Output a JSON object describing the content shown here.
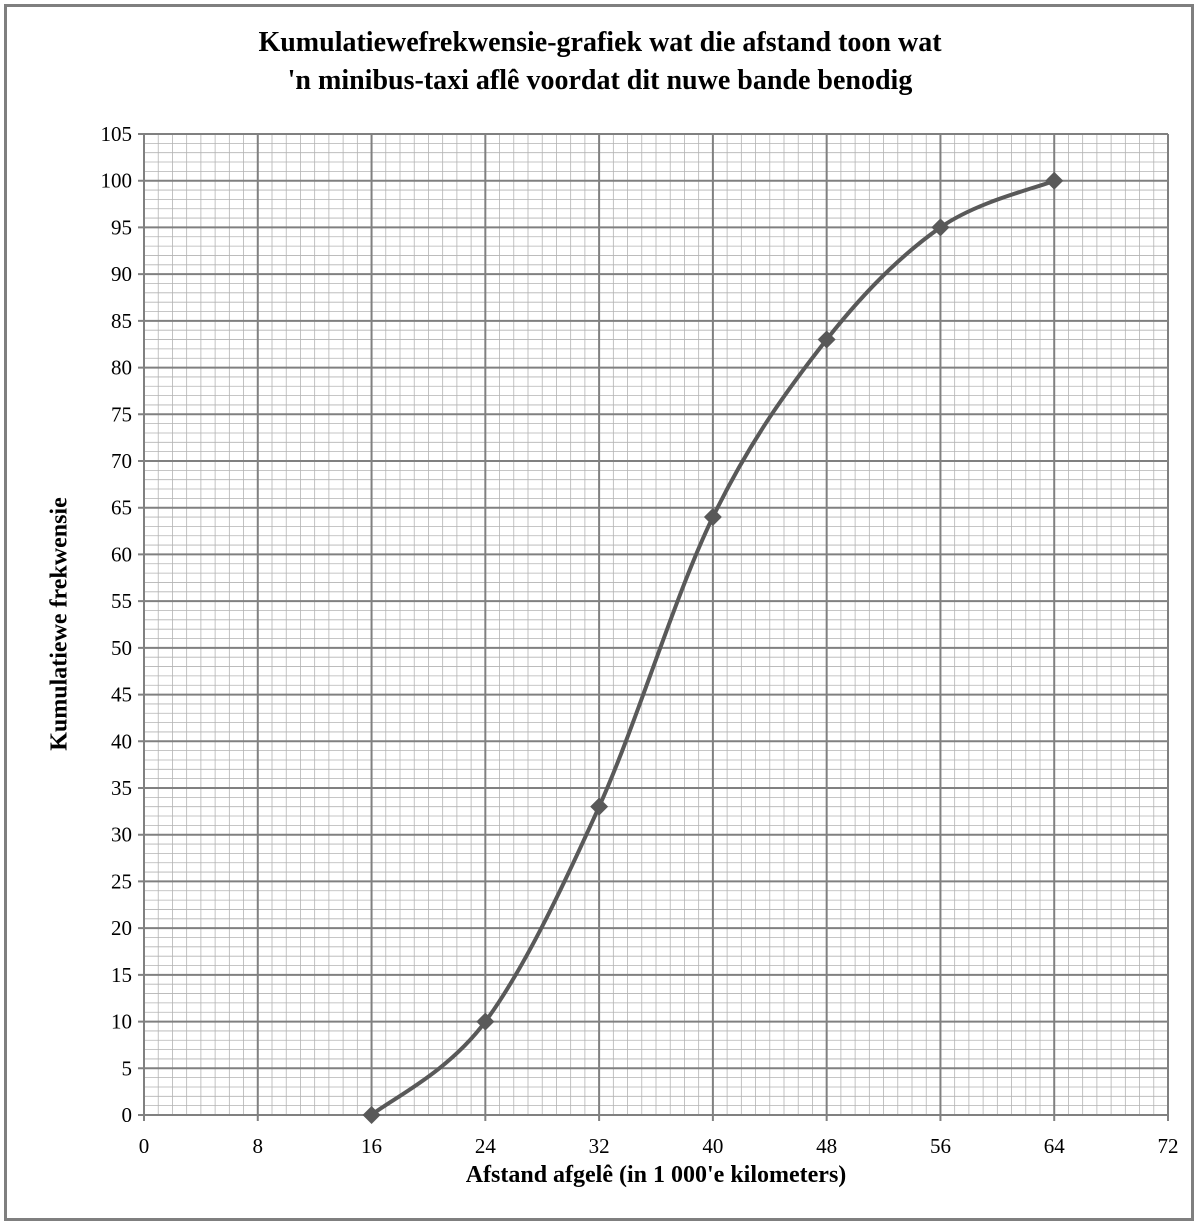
{
  "chart_data": {
    "type": "line",
    "title_lines": [
      "Kumulatiewefrekwensie-grafiek wat die afstand toon wat",
      "'n minibus-taxi aflê voordat dit nuwe bande benodig"
    ],
    "xlabel": "Afstand afgelê (in 1 000'e kilometers)",
    "ylabel": "Kumulatiewe frekwensie",
    "xlim": [
      0,
      72
    ],
    "ylim": [
      0,
      105
    ],
    "x_ticks": [
      "0",
      "8",
      "16",
      "24",
      "32",
      "40",
      "48",
      "56",
      "64",
      "72"
    ],
    "y_ticks": [
      "0",
      "5",
      "10",
      "15",
      "20",
      "25",
      "30",
      "35",
      "40",
      "45",
      "50",
      "55",
      "60",
      "65",
      "70",
      "75",
      "80",
      "85",
      "90",
      "95",
      "100",
      "105"
    ],
    "x_tick_step": 8,
    "y_tick_step": 5,
    "minor_x_per_major": 8,
    "minor_y_per_major": 5,
    "grid": true,
    "series": [
      {
        "x": [
          16,
          24,
          32,
          40,
          48,
          56,
          64
        ],
        "y": [
          0,
          10,
          33,
          64,
          83,
          95,
          100
        ],
        "marker": "diamond",
        "smooth": true
      }
    ],
    "line_color": "#595959",
    "grid_color": "#808080"
  }
}
